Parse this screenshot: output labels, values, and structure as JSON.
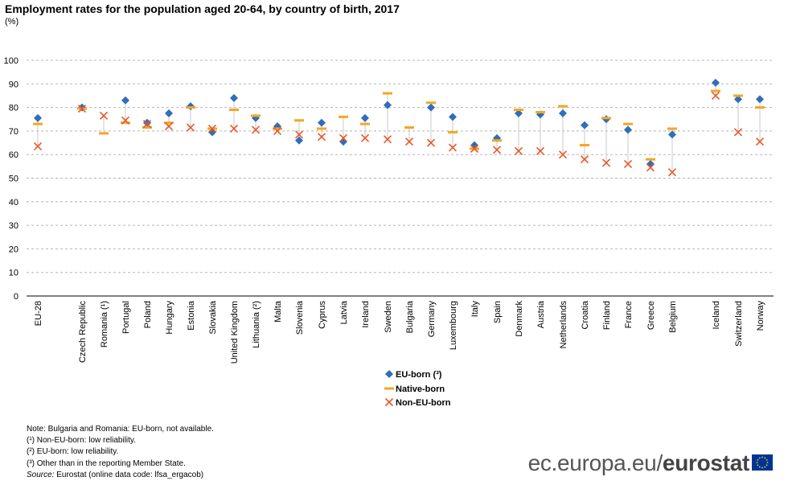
{
  "chart_data": {
    "type": "scatter",
    "title": "Employment rates for the population aged 20-64, by country of birth, 2017",
    "unit_label": "(%)",
    "xlabel": "",
    "ylabel": "",
    "ylim": [
      0,
      100
    ],
    "y_ticks": [
      0,
      10,
      20,
      30,
      40,
      50,
      60,
      70,
      80,
      90,
      100
    ],
    "grid": true,
    "legend_position": "bottom-center",
    "categories": [
      "EU-28",
      "Czech Republic",
      "Romania (¹)",
      "Portugal",
      "Poland",
      "Hungary",
      "Estonia",
      "Slovakia",
      "United Kingdom",
      "Lithuania (²)",
      "Malta",
      "Slovenia",
      "Cyprus",
      "Latvia",
      "Ireland",
      "Sweden",
      "Bulgaria",
      "Germany",
      "Luxembourg",
      "Italy",
      "Spain",
      "Denmark",
      "Austria",
      "Netherlands",
      "Croatia",
      "Finland",
      "France",
      "Greece",
      "Belgium",
      "Iceland",
      "Switzerland",
      "Norway"
    ],
    "series": [
      {
        "name": "EU-born (³)",
        "marker": "diamond",
        "color": "#2f6eba",
        "values": [
          75.5,
          80.0,
          null,
          83.0,
          73.5,
          77.5,
          80.5,
          69.5,
          84.0,
          75.5,
          72.0,
          66.0,
          73.5,
          65.5,
          75.5,
          81.0,
          null,
          80.0,
          76.0,
          64.0,
          67.0,
          77.5,
          77.0,
          77.5,
          72.5,
          75.0,
          70.5,
          56.0,
          68.5,
          90.5,
          83.5,
          83.5
        ]
      },
      {
        "name": "Native-born",
        "marker": "dash",
        "color": "#f5a623",
        "values": [
          73.0,
          79.5,
          69.0,
          73.5,
          71.5,
          73.5,
          80.0,
          71.0,
          79.0,
          76.5,
          71.0,
          74.5,
          71.0,
          76.0,
          73.0,
          86.0,
          71.5,
          82.0,
          69.5,
          62.5,
          66.0,
          79.0,
          78.0,
          80.5,
          64.0,
          75.5,
          73.0,
          58.0,
          71.0,
          87.0,
          85.0,
          80.0
        ]
      },
      {
        "name": "Non-EU-born",
        "marker": "x",
        "color": "#e8582a",
        "values": [
          63.5,
          79.5,
          76.5,
          74.5,
          73.0,
          72.0,
          71.5,
          71.0,
          71.0,
          70.5,
          70.0,
          68.5,
          67.5,
          67.0,
          67.0,
          66.5,
          65.5,
          65.0,
          63.0,
          62.5,
          62.0,
          61.5,
          61.5,
          60.0,
          58.0,
          56.5,
          56.0,
          54.5,
          52.5,
          85.0,
          69.5,
          65.5
        ]
      }
    ]
  },
  "notes": {
    "line1": "Note: Bulgaria and Romania: EU-born, not available.",
    "line2": "(¹) Non-EU-born: low reliability.",
    "line3": "(²) EU-born: low reliability.",
    "line4": "(³) Other than in the reporting Member State.",
    "source_label": "Source:",
    "source_text": " Eurostat (online data code: lfsa_ergacob)"
  },
  "footer": {
    "site": "ec.europa.eu/",
    "brand": "eurostat",
    "flag_color": "#003399",
    "star_color": "#ffcc00"
  }
}
